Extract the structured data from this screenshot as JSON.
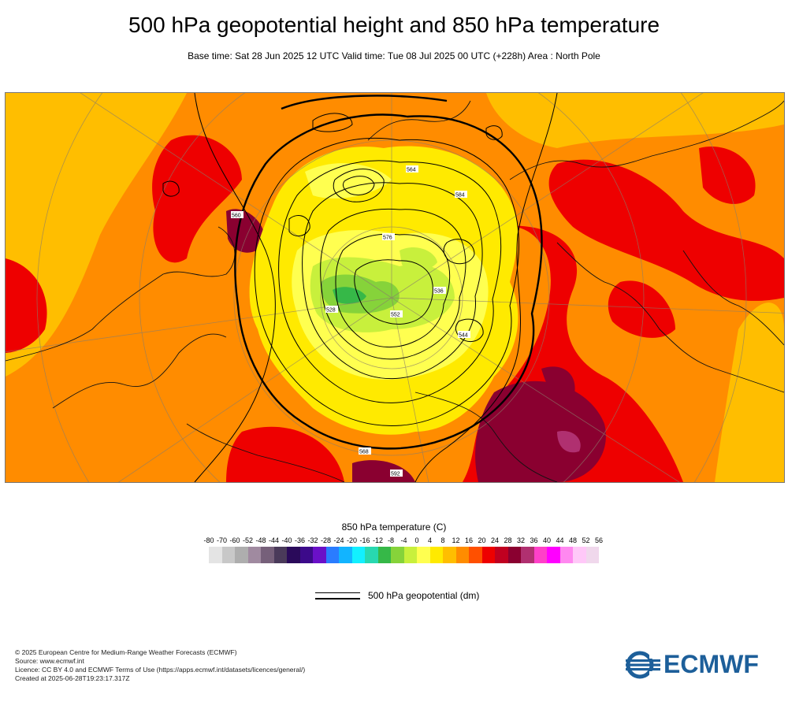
{
  "header": {
    "title": "500 hPa geopotential height and 850 hPa temperature",
    "subtitle": "Base time: Sat 28 Jun 2025 12 UTC Valid time: Tue 08 Jul 2025 00 UTC (+228h) Area : North Pole"
  },
  "map": {
    "contour_labels": [
      "564",
      "576",
      "552",
      "544",
      "528",
      "536",
      "584",
      "568",
      "560",
      "592"
    ]
  },
  "legend": {
    "title": "850 hPa temperature (C)",
    "ticks": [
      "-80",
      "-70",
      "-60",
      "-52",
      "-48",
      "-44",
      "-40",
      "-36",
      "-32",
      "-28",
      "-24",
      "-20",
      "-16",
      "-12",
      "-8",
      "-4",
      "0",
      "4",
      "8",
      "12",
      "16",
      "20",
      "24",
      "28",
      "32",
      "36",
      "40",
      "44",
      "48",
      "52",
      "56"
    ],
    "colors": [
      "#e4e4e4",
      "#c8c8c8",
      "#aeaeae",
      "#a08aa0",
      "#76607a",
      "#4a3a5a",
      "#2a0a5a",
      "#3c0a8a",
      "#6a10c8",
      "#2a7cff",
      "#12b4ff",
      "#12f0ff",
      "#28d8b0",
      "#36b848",
      "#86d33a",
      "#c8f03c",
      "#ffff50",
      "#ffea00",
      "#ffbe00",
      "#ff8c00",
      "#ff5000",
      "#ee0000",
      "#c00020",
      "#8a0030",
      "#b03070",
      "#ff40c8",
      "#ff00ff",
      "#ff88f0",
      "#ffc8f8",
      "#f0d8ec"
    ],
    "geopotential_label": "500 hPa geopotential (dm)"
  },
  "footer": {
    "line1": "© 2025 European Centre for Medium-Range Weather Forecasts (ECMWF)",
    "line2": "Source: www.ecmwf.int",
    "line3": "Licence: CC BY 4.0 and ECMWF Terms of Use (https://apps.ecmwf.int/datasets/licences/general/)",
    "line4": "Created at 2025-06-28T19:23:17.317Z"
  },
  "logo": {
    "text": "ECMWF",
    "color": "#1d5f9a"
  }
}
